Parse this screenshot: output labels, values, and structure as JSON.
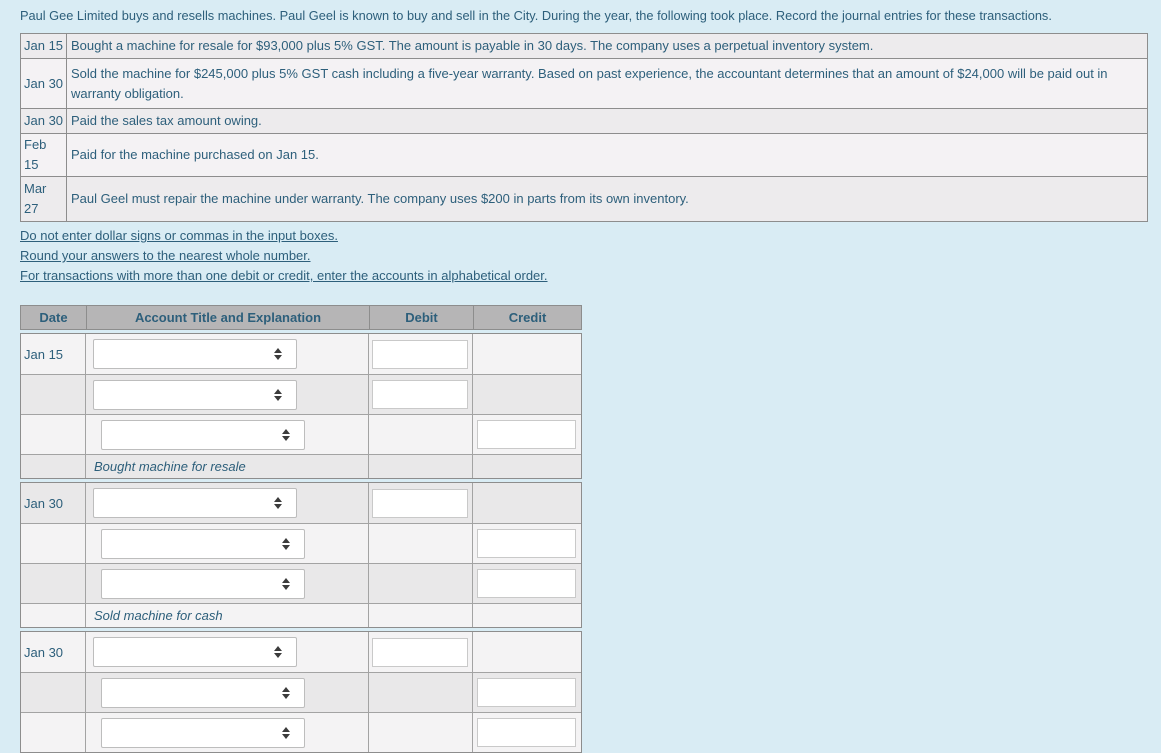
{
  "page": {
    "background_color": "#d9ecf4",
    "text_color": "#2d5f7b",
    "header_bg_color": "#b6b5b6",
    "row_light_color": "#f4f3f4",
    "row_dark_color": "#e9e8e9"
  },
  "intro": "Paul Gee Limited buys and resells machines. Paul Geel is known to buy and sell in the City. During the year, the following took place. Record the journal entries for these transactions.",
  "transactions": [
    {
      "date": "Jan 15",
      "description": "Bought a machine for resale for $93,000 plus 5% GST. The amount is payable in 30 days. The company uses a perpetual inventory system."
    },
    {
      "date": "Jan 30",
      "description": "Sold the machine for $245,000 plus 5% GST cash including a five-year warranty. Based on past experience, the accountant determines that an amount of $24,000 will be paid out in warranty obligation."
    },
    {
      "date": "Jan 30",
      "description": "Paid the sales tax amount owing."
    },
    {
      "date": "Feb 15",
      "description": "Paid for the machine purchased on Jan 15."
    },
    {
      "date": "Mar 27",
      "description": "Paul Geel must repair the machine under warranty. The company uses $200 in parts from its own inventory."
    }
  ],
  "instructions": [
    "Do not enter dollar signs or commas in the input boxes.",
    "Round your answers to the nearest whole number.",
    "For transactions with more than one debit or credit, enter the accounts in alphabetical order."
  ],
  "journal": {
    "headers": {
      "date": "Date",
      "account": "Account Title and Explanation",
      "debit": "Debit",
      "credit": "Credit"
    },
    "groups": [
      {
        "date": "Jan 15",
        "explanation": "Bought machine for resale"
      },
      {
        "date": "Jan 30",
        "explanation": "Sold machine for cash"
      },
      {
        "date": "Jan 30",
        "explanation": ""
      }
    ],
    "select_values": [
      "",
      "",
      "",
      "",
      "",
      "",
      "",
      ""
    ],
    "input_values": {
      "debits": [
        "",
        "",
        ""
      ],
      "credits": [
        "",
        "",
        "",
        "",
        ""
      ]
    }
  }
}
